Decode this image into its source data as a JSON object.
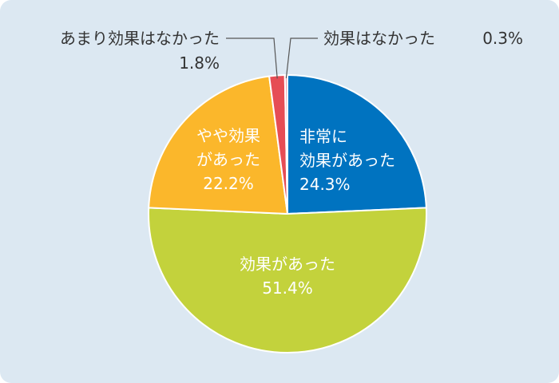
{
  "chart_data": {
    "type": "pie",
    "start_angle_deg": 0,
    "direction": "clockwise",
    "slices": [
      {
        "label_lines": [
          "非常に",
          "効果があった"
        ],
        "value": 24.3,
        "value_label": "24.3%",
        "color": "#0073c0",
        "label_style": "inside"
      },
      {
        "label_lines": [
          "効果があった"
        ],
        "value": 51.4,
        "value_label": "51.4%",
        "color": "#c3d23c",
        "label_style": "inside"
      },
      {
        "label_lines": [
          "やや効果",
          "があった"
        ],
        "value": 22.2,
        "value_label": "22.2%",
        "color": "#fbb72b",
        "label_style": "inside"
      },
      {
        "label_lines": [
          "あまり効果はなかった"
        ],
        "value": 1.8,
        "value_label": "1.8%",
        "color": "#e64d55",
        "label_style": "outside-left"
      },
      {
        "label_lines": [
          "効果はなかった"
        ],
        "value": 0.3,
        "value_label": "0.3%",
        "color": "#f5a0b0",
        "label_style": "outside-right"
      }
    ]
  },
  "colors": {
    "background": "#dce8f2",
    "slice_border": "#ffffff",
    "outer_text": "#333333",
    "inner_text": "#ffffff"
  }
}
